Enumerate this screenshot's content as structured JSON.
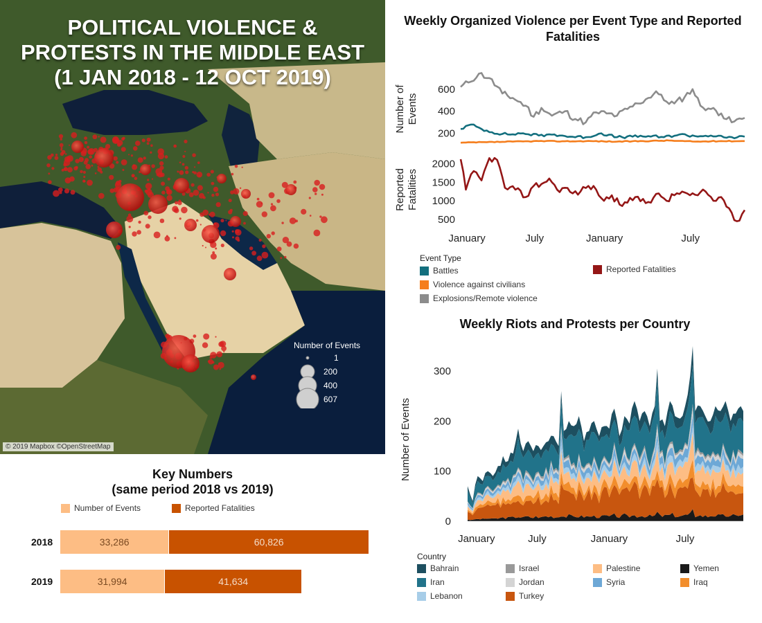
{
  "map": {
    "title_lines": [
      "POLITICAL VIOLENCE &",
      "PROTESTS IN THE MIDDLE EAST",
      "(1 JAN 2018 - 12 OCT 2019)"
    ],
    "attribution": "© 2019 Mapbox ©OpenStreetMap",
    "legend": {
      "title": "Number of Events",
      "items": [
        {
          "label": "1",
          "value": 1
        },
        {
          "label": "200",
          "value": 200
        },
        {
          "label": "400",
          "value": 400
        },
        {
          "label": "607",
          "value": 607
        }
      ]
    },
    "marker_color": "#d81e1e"
  },
  "key_numbers": {
    "title_line1": "Key Numbers",
    "title_line2": "(same period 2018 vs 2019)",
    "legend": [
      {
        "label": "Number of Events",
        "color": "#fdbd84"
      },
      {
        "label": "Reported Fatalities",
        "color": "#c85200"
      }
    ],
    "rows": [
      {
        "year": "2018",
        "events": 33286,
        "events_label": "33,286",
        "fatalities": 60826,
        "fatalities_label": "60,826"
      },
      {
        "year": "2019",
        "events": 31994,
        "events_label": "31,994",
        "fatalities": 41634,
        "fatalities_label": "41,634"
      }
    ]
  },
  "chart_data": [
    {
      "type": "line",
      "title": "Weekly Organized Violence per Event Type and Reported Fatalities",
      "x_tick_labels": [
        "January",
        "July",
        "January",
        "July"
      ],
      "x_tick_positions": [
        2.4,
        28.4,
        55.2,
        88.2
      ],
      "week_count": 110,
      "panels": [
        {
          "ylabel_lines": [
            "Number of",
            "Events"
          ],
          "ylim": [
            60,
            780
          ],
          "yticks": [
            200,
            400,
            600
          ],
          "series_ref": [
            "Explosions/Remote violence",
            "Battles",
            "Violence against civilians"
          ]
        },
        {
          "ylabel_lines": [
            "Reported",
            "Fatalities"
          ],
          "ylim": [
            350,
            2250
          ],
          "yticks": [
            500,
            1000,
            1500,
            2000
          ],
          "series_ref": [
            "Reported Fatalities"
          ]
        }
      ],
      "legend": {
        "title": "Event Type",
        "items": [
          {
            "label": "Battles",
            "color": "#136f7e"
          },
          {
            "label": "Violence against civilians",
            "color": "#f57e1d"
          },
          {
            "label": "Explosions/Remote violence",
            "color": "#8c8c8c"
          },
          {
            "label": "Reported Fatalities",
            "color": "#941616"
          }
        ]
      },
      "series": [
        {
          "name": "Explosions/Remote violence",
          "color": "#8c8c8c",
          "keyframes": [
            [
              0,
              620
            ],
            [
              3,
              660
            ],
            [
              7,
              740
            ],
            [
              11,
              700
            ],
            [
              16,
              560
            ],
            [
              20,
              520
            ],
            [
              25,
              450
            ],
            [
              28,
              350
            ],
            [
              31,
              430
            ],
            [
              35,
              360
            ],
            [
              40,
              400
            ],
            [
              44,
              330
            ],
            [
              48,
              300
            ],
            [
              52,
              390
            ],
            [
              56,
              380
            ],
            [
              60,
              360
            ],
            [
              64,
              420
            ],
            [
              68,
              470
            ],
            [
              72,
              520
            ],
            [
              75,
              580
            ],
            [
              78,
              500
            ],
            [
              82,
              470
            ],
            [
              86,
              530
            ],
            [
              89,
              600
            ],
            [
              92,
              450
            ],
            [
              96,
              420
            ],
            [
              100,
              380
            ],
            [
              104,
              300
            ],
            [
              109,
              340
            ]
          ]
        },
        {
          "name": "Battles",
          "color": "#136f7e",
          "keyframes": [
            [
              0,
              240
            ],
            [
              4,
              280
            ],
            [
              8,
              240
            ],
            [
              12,
              210
            ],
            [
              18,
              190
            ],
            [
              24,
              200
            ],
            [
              30,
              180
            ],
            [
              36,
              190
            ],
            [
              42,
              170
            ],
            [
              48,
              165
            ],
            [
              54,
              200
            ],
            [
              60,
              165
            ],
            [
              66,
              170
            ],
            [
              72,
              175
            ],
            [
              78,
              165
            ],
            [
              84,
              190
            ],
            [
              90,
              175
            ],
            [
              96,
              180
            ],
            [
              102,
              160
            ],
            [
              109,
              170
            ]
          ]
        },
        {
          "name": "Violence against civilians",
          "color": "#f57e1d",
          "keyframes": [
            [
              0,
              115
            ],
            [
              10,
              120
            ],
            [
              20,
              125
            ],
            [
              30,
              130
            ],
            [
              40,
              128
            ],
            [
              50,
              130
            ],
            [
              60,
              125
            ],
            [
              70,
              130
            ],
            [
              80,
              135
            ],
            [
              90,
              125
            ],
            [
              100,
              130
            ],
            [
              109,
              130
            ]
          ]
        },
        {
          "name": "Reported Fatalities",
          "color": "#941616",
          "keyframes": [
            [
              0,
              2120
            ],
            [
              2,
              1300
            ],
            [
              5,
              1800
            ],
            [
              8,
              1550
            ],
            [
              11,
              2150
            ],
            [
              14,
              2100
            ],
            [
              17,
              1350
            ],
            [
              21,
              1300
            ],
            [
              25,
              1100
            ],
            [
              28,
              1400
            ],
            [
              31,
              1450
            ],
            [
              34,
              1600
            ],
            [
              37,
              1300
            ],
            [
              40,
              1350
            ],
            [
              43,
              1200
            ],
            [
              46,
              1250
            ],
            [
              49,
              1400
            ],
            [
              52,
              1300
            ],
            [
              55,
              1000
            ],
            [
              58,
              1150
            ],
            [
              61,
              900
            ],
            [
              64,
              950
            ],
            [
              67,
              1100
            ],
            [
              70,
              1050
            ],
            [
              73,
              950
            ],
            [
              76,
              1200
            ],
            [
              79,
              1000
            ],
            [
              82,
              1150
            ],
            [
              85,
              1250
            ],
            [
              88,
              1150
            ],
            [
              91,
              1150
            ],
            [
              94,
              1250
            ],
            [
              97,
              1000
            ],
            [
              100,
              1100
            ],
            [
              103,
              800
            ],
            [
              106,
              450
            ],
            [
              109,
              750
            ]
          ]
        }
      ]
    },
    {
      "type": "area",
      "title": "Weekly Riots and Protests per Country",
      "ylabel": "Number of Events",
      "ylim": [
        -10,
        350
      ],
      "yticks": [
        0,
        100,
        200,
        300
      ],
      "x_tick_labels": [
        "January",
        "July",
        "January",
        "July"
      ],
      "x_tick_positions": [
        3.5,
        27.5,
        56,
        86
      ],
      "week_count": 110,
      "legend": {
        "title": "Country",
        "items": [
          {
            "label": "Bahrain",
            "color": "#1d4f60"
          },
          {
            "label": "Israel",
            "color": "#999999"
          },
          {
            "label": "Palestine",
            "color": "#fdbd84"
          },
          {
            "label": "Yemen",
            "color": "#1a1a1a"
          },
          {
            "label": "Iran",
            "color": "#21738a"
          },
          {
            "label": "Jordan",
            "color": "#d4d4d4"
          },
          {
            "label": "Syria",
            "color": "#6da8d6"
          },
          {
            "label": "Iraq",
            "color": "#f28e2c"
          },
          {
            "label": "Lebanon",
            "color": "#a7cde8"
          },
          {
            "label": "Turkey",
            "color": "#c8560f"
          }
        ]
      },
      "total_keyframes": [
        [
          0,
          70
        ],
        [
          2,
          40
        ],
        [
          4,
          90
        ],
        [
          6,
          80
        ],
        [
          8,
          100
        ],
        [
          10,
          90
        ],
        [
          12,
          110
        ],
        [
          14,
          130
        ],
        [
          16,
          120
        ],
        [
          18,
          135
        ],
        [
          20,
          185
        ],
        [
          22,
          140
        ],
        [
          24,
          160
        ],
        [
          26,
          140
        ],
        [
          28,
          150
        ],
        [
          30,
          150
        ],
        [
          32,
          160
        ],
        [
          34,
          170
        ],
        [
          36,
          150
        ],
        [
          37,
          260
        ],
        [
          38,
          180
        ],
        [
          40,
          200
        ],
        [
          42,
          190
        ],
        [
          44,
          210
        ],
        [
          46,
          160
        ],
        [
          48,
          180
        ],
        [
          50,
          200
        ],
        [
          52,
          170
        ],
        [
          54,
          190
        ],
        [
          56,
          185
        ],
        [
          58,
          225
        ],
        [
          60,
          170
        ],
        [
          62,
          210
        ],
        [
          64,
          195
        ],
        [
          66,
          240
        ],
        [
          68,
          200
        ],
        [
          70,
          220
        ],
        [
          72,
          190
        ],
        [
          74,
          230
        ],
        [
          75,
          305
        ],
        [
          76,
          200
        ],
        [
          78,
          190
        ],
        [
          80,
          240
        ],
        [
          82,
          210
        ],
        [
          84,
          205
        ],
        [
          86,
          230
        ],
        [
          88,
          290
        ],
        [
          89,
          350
        ],
        [
          90,
          220
        ],
        [
          92,
          230
        ],
        [
          94,
          210
        ],
        [
          96,
          200
        ],
        [
          98,
          230
        ],
        [
          100,
          220
        ],
        [
          102,
          240
        ],
        [
          104,
          200
        ],
        [
          106,
          215
        ],
        [
          107,
          225
        ],
        [
          108,
          230
        ],
        [
          109,
          220
        ]
      ],
      "series": [
        {
          "name": "Yemen",
          "color": "#1a1a1a",
          "share": 0.05
        },
        {
          "name": "Turkey",
          "color": "#c8560f",
          "share": 0.24
        },
        {
          "name": "Iraq",
          "color": "#f28e2c",
          "share": 0.07
        },
        {
          "name": "Palestine",
          "color": "#fdbd84",
          "share": 0.12
        },
        {
          "name": "Lebanon",
          "color": "#a7cde8",
          "share": 0.05
        },
        {
          "name": "Syria",
          "color": "#6da8d6",
          "share": 0.06
        },
        {
          "name": "Jordan",
          "color": "#d4d4d4",
          "share": 0.03
        },
        {
          "name": "Israel",
          "color": "#999999",
          "share": 0.02
        },
        {
          "name": "Iran",
          "color": "#21738a",
          "share": 0.26
        },
        {
          "name": "Bahrain",
          "color": "#1d4f60",
          "share": 0.1
        }
      ]
    }
  ]
}
